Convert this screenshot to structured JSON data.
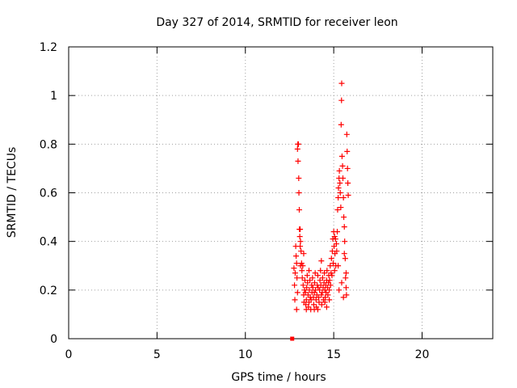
{
  "chart_data": {
    "type": "scatter",
    "title": "Day 327 of 2014, SRMTID for receiver leon",
    "xlabel": "GPS time / hours",
    "ylabel": "SRMTID / TECUs",
    "xlim": [
      0,
      24
    ],
    "ylim": [
      0,
      1.2
    ],
    "x_ticks": [
      0,
      5,
      10,
      15,
      20
    ],
    "x_tick_labels": [
      "0",
      "5",
      "10",
      "15",
      "20"
    ],
    "y_ticks": [
      0,
      0.2,
      0.4,
      0.6,
      0.8,
      1.0,
      1.2
    ],
    "y_tick_labels": [
      "0",
      "0.2",
      "0.4",
      "0.6",
      "0.8",
      "1",
      "1.2"
    ],
    "grid": true,
    "marker": "+",
    "color": "#ff0000",
    "square_points": [
      {
        "x": 12.65,
        "y": 0.0
      }
    ],
    "series": [
      {
        "name": "SRMTID",
        "points": [
          [
            12.75,
            0.29
          ],
          [
            12.78,
            0.22
          ],
          [
            12.8,
            0.16
          ],
          [
            12.82,
            0.27
          ],
          [
            12.85,
            0.38
          ],
          [
            12.87,
            0.34
          ],
          [
            12.9,
            0.31
          ],
          [
            12.92,
            0.25
          ],
          [
            12.95,
            0.78
          ],
          [
            12.97,
            0.8
          ],
          [
            12.98,
            0.73
          ],
          [
            13.0,
            0.8
          ],
          [
            13.02,
            0.66
          ],
          [
            13.03,
            0.6
          ],
          [
            13.05,
            0.53
          ],
          [
            13.06,
            0.45
          ],
          [
            13.08,
            0.42
          ],
          [
            13.1,
            0.38
          ],
          [
            13.12,
            0.4
          ],
          [
            13.15,
            0.36
          ],
          [
            13.18,
            0.31
          ],
          [
            13.2,
            0.28
          ],
          [
            13.22,
            0.25
          ],
          [
            13.25,
            0.3
          ],
          [
            13.27,
            0.22
          ],
          [
            13.3,
            0.18
          ],
          [
            13.32,
            0.15
          ],
          [
            13.35,
            0.2
          ],
          [
            13.37,
            0.24
          ],
          [
            13.4,
            0.19
          ],
          [
            13.42,
            0.14
          ],
          [
            13.45,
            0.16
          ],
          [
            13.47,
            0.21
          ],
          [
            13.5,
            0.26
          ],
          [
            13.52,
            0.23
          ],
          [
            13.55,
            0.18
          ],
          [
            13.57,
            0.13
          ],
          [
            13.6,
            0.15
          ],
          [
            13.62,
            0.2
          ],
          [
            13.65,
            0.24
          ],
          [
            13.67,
            0.17
          ],
          [
            13.7,
            0.12
          ],
          [
            13.72,
            0.16
          ],
          [
            13.75,
            0.22
          ],
          [
            13.77,
            0.19
          ],
          [
            13.8,
            0.25
          ],
          [
            13.82,
            0.21
          ],
          [
            13.85,
            0.17
          ],
          [
            13.87,
            0.14
          ],
          [
            13.9,
            0.19
          ],
          [
            13.92,
            0.23
          ],
          [
            13.95,
            0.27
          ],
          [
            13.97,
            0.2
          ],
          [
            14.0,
            0.16
          ],
          [
            14.02,
            0.13
          ],
          [
            14.05,
            0.18
          ],
          [
            14.07,
            0.22
          ],
          [
            14.1,
            0.26
          ],
          [
            14.12,
            0.21
          ],
          [
            14.15,
            0.17
          ],
          [
            14.17,
            0.15
          ],
          [
            14.2,
            0.2
          ],
          [
            14.22,
            0.24
          ],
          [
            14.25,
            0.28
          ],
          [
            14.27,
            0.22
          ],
          [
            14.3,
            0.18
          ],
          [
            14.32,
            0.14
          ],
          [
            14.35,
            0.19
          ],
          [
            14.37,
            0.25
          ],
          [
            14.4,
            0.21
          ],
          [
            14.42,
            0.16
          ],
          [
            14.45,
            0.23
          ],
          [
            14.47,
            0.27
          ],
          [
            14.5,
            0.2
          ],
          [
            14.52,
            0.17
          ],
          [
            14.55,
            0.22
          ],
          [
            14.57,
            0.19
          ],
          [
            14.6,
            0.24
          ],
          [
            14.62,
            0.28
          ],
          [
            14.65,
            0.21
          ],
          [
            14.67,
            0.18
          ],
          [
            14.7,
            0.23
          ],
          [
            14.72,
            0.26
          ],
          [
            14.75,
            0.2
          ],
          [
            14.77,
            0.24
          ],
          [
            14.8,
            0.3
          ],
          [
            14.82,
            0.22
          ],
          [
            14.85,
            0.27
          ],
          [
            14.87,
            0.33
          ],
          [
            14.9,
            0.26
          ],
          [
            14.92,
            0.36
          ],
          [
            14.95,
            0.41
          ],
          [
            14.97,
            0.31
          ],
          [
            15.0,
            0.44
          ],
          [
            15.02,
            0.38
          ],
          [
            15.05,
            0.42
          ],
          [
            15.07,
            0.35
          ],
          [
            15.1,
            0.41
          ],
          [
            15.12,
            0.3
          ],
          [
            15.15,
            0.39
          ],
          [
            15.17,
            0.36
          ],
          [
            15.2,
            0.44
          ],
          [
            15.22,
            0.53
          ],
          [
            15.25,
            0.58
          ],
          [
            15.27,
            0.62
          ],
          [
            15.3,
            0.66
          ],
          [
            15.32,
            0.69
          ],
          [
            15.35,
            0.64
          ],
          [
            15.37,
            0.6
          ],
          [
            15.4,
            0.54
          ],
          [
            15.42,
            0.88
          ],
          [
            15.44,
            0.98
          ],
          [
            15.45,
            1.05
          ],
          [
            15.47,
            0.75
          ],
          [
            15.5,
            0.71
          ],
          [
            15.52,
            0.66
          ],
          [
            15.55,
            0.58
          ],
          [
            15.57,
            0.5
          ],
          [
            15.6,
            0.46
          ],
          [
            15.62,
            0.4
          ],
          [
            15.65,
            0.33
          ],
          [
            15.67,
            0.25
          ],
          [
            15.7,
            0.21
          ],
          [
            15.72,
            0.18
          ],
          [
            15.74,
            0.84
          ],
          [
            15.76,
            0.77
          ],
          [
            15.78,
            0.7
          ],
          [
            15.8,
            0.64
          ],
          [
            15.82,
            0.59
          ],
          [
            13.1,
            0.45
          ],
          [
            13.12,
            0.3
          ],
          [
            13.3,
            0.35
          ],
          [
            13.45,
            0.12
          ],
          [
            13.6,
            0.28
          ],
          [
            13.9,
            0.12
          ],
          [
            14.1,
            0.12
          ],
          [
            14.3,
            0.32
          ],
          [
            14.5,
            0.15
          ],
          [
            14.6,
            0.13
          ],
          [
            14.75,
            0.16
          ],
          [
            15.05,
            0.28
          ],
          [
            15.25,
            0.3
          ],
          [
            15.45,
            0.23
          ],
          [
            15.6,
            0.35
          ],
          [
            12.9,
            0.12
          ],
          [
            12.95,
            0.19
          ],
          [
            15.3,
            0.2
          ],
          [
            15.55,
            0.17
          ],
          [
            15.7,
            0.27
          ]
        ]
      }
    ]
  }
}
